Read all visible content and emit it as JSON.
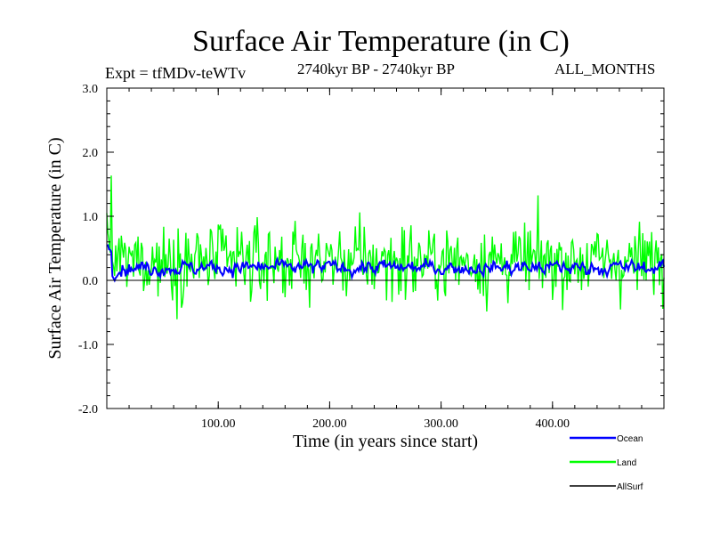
{
  "chart_data": {
    "type": "line",
    "title": "Surface Air Temperature (in C)",
    "subtitle_left": "Expt = tfMDv-teWTv",
    "subtitle_center": "2740kyr BP - 2740kyr BP",
    "subtitle_right": "ALL_MONTHS",
    "xlabel": "Time (in years since start)",
    "ylabel": "Surface Air Temperature (in C)",
    "xlim": [
      0,
      500
    ],
    "ylim": [
      -2.0,
      3.0
    ],
    "xticks": [
      100,
      200,
      300,
      400
    ],
    "xtick_labels": [
      "100.00",
      "200.00",
      "300.00",
      "400.00"
    ],
    "yticks": [
      -2.0,
      -1.0,
      0.0,
      1.0,
      2.0,
      3.0
    ],
    "ytick_labels": [
      "-2.0",
      "-1.0",
      "0.0",
      "1.0",
      "2.0",
      "3.0"
    ],
    "zero_line": true,
    "series": [
      {
        "name": "Land",
        "color": "#00ff00",
        "mean": 0.3,
        "amplitude": 0.75
      },
      {
        "name": "Ocean",
        "color": "#0000ff",
        "mean": 0.2,
        "amplitude": 0.17
      }
    ],
    "legend": [
      {
        "label": "Ocean",
        "color": "#0000ff"
      },
      {
        "label": "Land",
        "color": "#00ff00"
      },
      {
        "label": "AllSurf",
        "color": "#000000"
      }
    ],
    "legend_position": "bottom-right"
  }
}
